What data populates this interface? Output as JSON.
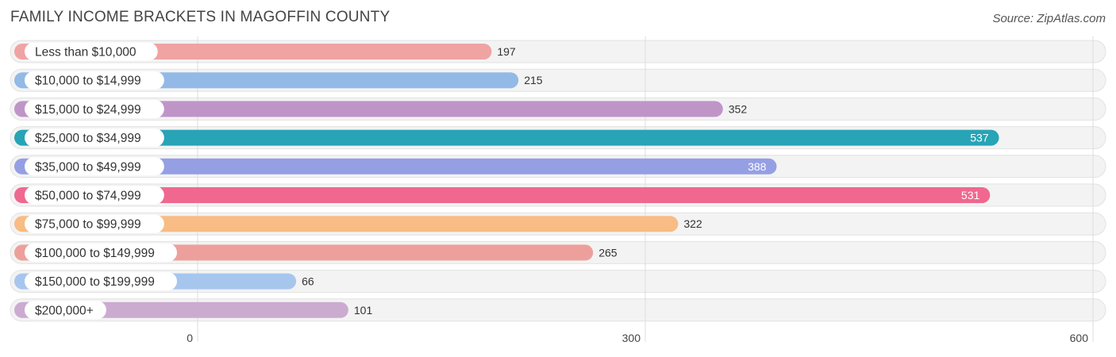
{
  "title": "FAMILY INCOME BRACKETS IN MAGOFFIN COUNTY",
  "source": "Source: ZipAtlas.com",
  "chart_data": {
    "type": "bar",
    "orientation": "horizontal",
    "title": "FAMILY INCOME BRACKETS IN MAGOFFIN COUNTY",
    "xlabel": "",
    "ylabel": "",
    "xlim": [
      0,
      600
    ],
    "ticks": [
      0,
      300,
      600
    ],
    "grid": true,
    "categories": [
      "Less than $10,000",
      "$10,000 to $14,999",
      "$15,000 to $24,999",
      "$25,000 to $34,999",
      "$35,000 to $49,999",
      "$50,000 to $74,999",
      "$75,000 to $99,999",
      "$100,000 to $149,999",
      "$150,000 to $199,999",
      "$200,000+"
    ],
    "values": [
      197,
      215,
      352,
      537,
      388,
      531,
      322,
      265,
      66,
      101
    ],
    "colors": [
      "#f0a3a3",
      "#93b9e6",
      "#bf95c8",
      "#27a4b6",
      "#959fe3",
      "#f0688f",
      "#f8bc84",
      "#eda09b",
      "#a7c6ee",
      "#ccabd1"
    ]
  }
}
